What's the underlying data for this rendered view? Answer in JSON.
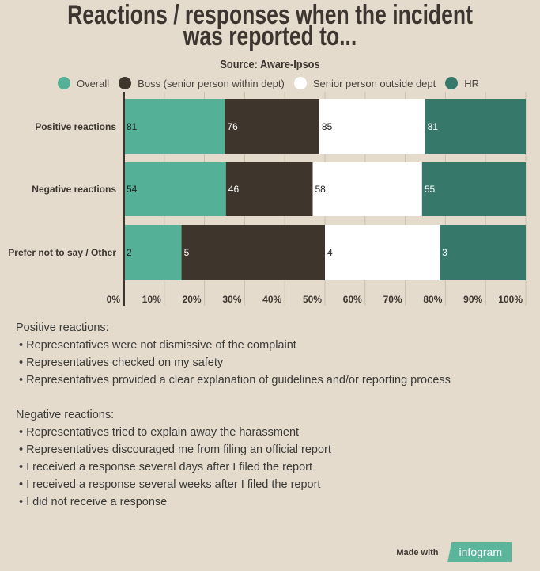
{
  "chart_data": {
    "type": "bar",
    "orientation": "horizontal",
    "stacked": "percent",
    "title": "Reactions / responses when the incident was reported to...",
    "subtitle": "Source: Aware-Ipsos",
    "categories": [
      "Positive reactions",
      "Negative reactions",
      "Prefer not to say / Other"
    ],
    "series": [
      {
        "name": "Overall",
        "color": "#54b096",
        "label_color": "#222222",
        "values": [
          81,
          54,
          2
        ]
      },
      {
        "name": "Boss (senior person within dept)",
        "color": "#3e362c",
        "label_color": "#ffffff",
        "values": [
          76,
          46,
          5
        ]
      },
      {
        "name": "Senior person outside dept",
        "color": "#ffffff",
        "label_color": "#222222",
        "values": [
          85,
          58,
          4
        ]
      },
      {
        "name": "HR",
        "color": "#36796a",
        "label_color": "#ffffff",
        "values": [
          81,
          55,
          3
        ]
      }
    ],
    "xticks": [
      "0%",
      "10%",
      "20%",
      "30%",
      "40%",
      "50%",
      "60%",
      "70%",
      "80%",
      "90%",
      "100%"
    ],
    "xlim": [
      0,
      100
    ],
    "grid": true,
    "legend": "top"
  },
  "notes": {
    "positive_heading": "Positive reactions:",
    "positive": [
      "Representatives were not dismissive of the complaint",
      "Representatives checked on my safety",
      "Representatives provided a clear explanation of guidelines and/or reporting process"
    ],
    "negative_heading": "Negative reactions:",
    "negative": [
      "Representatives tried to explain away the harassment",
      "Representatives discouraged me from filing an official report",
      "I received a response several days after I filed the report",
      "I received a response several weeks after I filed the report",
      "I did not receive a response"
    ]
  },
  "footer": {
    "made_with": "Made with",
    "brand": "infogram"
  }
}
